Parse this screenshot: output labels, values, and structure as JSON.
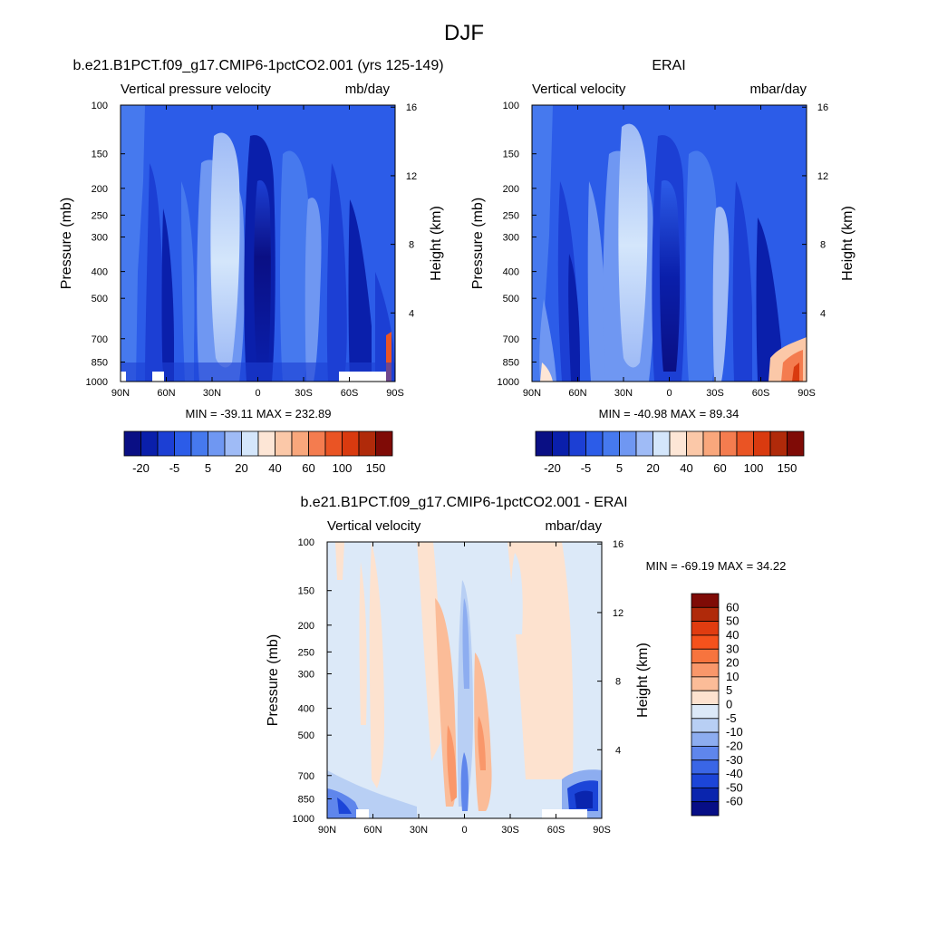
{
  "figure": {
    "title": "DJF",
    "background": "#ffffff"
  },
  "chart_data": [
    {
      "id": "model",
      "type": "heatmap",
      "title": "b.e21.B1PCT.f09_g17.CMIP6-1pctCO2.001 (yrs 125-149)",
      "left_string": "Vertical pressure velocity",
      "right_string": "mb/day",
      "xlabel": "",
      "ylabel": "Pressure (mb)",
      "y2label": "Height (km)",
      "x_ticks": [
        "90N",
        "60N",
        "30N",
        "0",
        "30S",
        "60S",
        "90S"
      ],
      "x_range": [
        90,
        -90
      ],
      "y_ticks": [
        "100",
        "150",
        "200",
        "250",
        "300",
        "400",
        "500",
        "700",
        "850",
        "1000"
      ],
      "y_tick_values": [
        100,
        150,
        200,
        250,
        300,
        400,
        500,
        700,
        850,
        1000
      ],
      "y_range": [
        100,
        1000
      ],
      "y2_ticks": [
        "16",
        "12",
        "8",
        "4"
      ],
      "y2_tick_values": [
        16,
        12,
        8,
        4
      ],
      "stats": "MIN = -39.11  MAX = 232.89",
      "colorbar": {
        "orientation": "horizontal",
        "labels": [
          "-20",
          "-5",
          "5",
          "20",
          "40",
          "60",
          "100",
          "150"
        ],
        "colors": [
          "#0a0f84",
          "#0a1fab",
          "#1c3fd4",
          "#2c5ce8",
          "#4679ee",
          "#6f97f2",
          "#9fbbf6",
          "#d4e6fb",
          "#fde6d6",
          "#fbc8a8",
          "#f9a77c",
          "#f47c4f",
          "#ea5424",
          "#d93a0f",
          "#b02a0a",
          "#7f0b06"
        ]
      }
    },
    {
      "id": "obs",
      "type": "heatmap",
      "title": "ERAI",
      "left_string": "Vertical velocity",
      "right_string": "mbar/day",
      "xlabel": "",
      "ylabel": "Pressure (mb)",
      "y2label": "Height (km)",
      "x_ticks": [
        "90N",
        "60N",
        "30N",
        "0",
        "30S",
        "60S",
        "90S"
      ],
      "x_range": [
        90,
        -90
      ],
      "y_ticks": [
        "100",
        "150",
        "200",
        "250",
        "300",
        "400",
        "500",
        "700",
        "850",
        "1000"
      ],
      "y_tick_values": [
        100,
        150,
        200,
        250,
        300,
        400,
        500,
        700,
        850,
        1000
      ],
      "y_range": [
        100,
        1000
      ],
      "y2_ticks": [
        "16",
        "12",
        "8",
        "4"
      ],
      "y2_tick_values": [
        16,
        12,
        8,
        4
      ],
      "stats": "MIN = -40.98  MAX =  89.34",
      "colorbar": {
        "orientation": "horizontal",
        "labels": [
          "-20",
          "-5",
          "5",
          "20",
          "40",
          "60",
          "100",
          "150"
        ],
        "colors": [
          "#0a0f84",
          "#0a1fab",
          "#1c3fd4",
          "#2c5ce8",
          "#4679ee",
          "#6f97f2",
          "#9fbbf6",
          "#d4e6fb",
          "#fde6d6",
          "#fbc8a8",
          "#f9a77c",
          "#f47c4f",
          "#ea5424",
          "#d93a0f",
          "#b02a0a",
          "#7f0b06"
        ]
      }
    },
    {
      "id": "diff",
      "type": "heatmap",
      "title": "b.e21.B1PCT.f09_g17.CMIP6-1pctCO2.001 - ERAI",
      "left_string": "Vertical velocity",
      "right_string": "mbar/day",
      "xlabel": "",
      "ylabel": "Pressure (mb)",
      "y2label": "Height (km)",
      "x_ticks": [
        "90N",
        "60N",
        "30N",
        "0",
        "30S",
        "60S",
        "90S"
      ],
      "x_range": [
        90,
        -90
      ],
      "y_ticks": [
        "100",
        "150",
        "200",
        "250",
        "300",
        "400",
        "500",
        "700",
        "850",
        "1000"
      ],
      "y_tick_values": [
        100,
        150,
        200,
        250,
        300,
        400,
        500,
        700,
        850,
        1000
      ],
      "y_range": [
        100,
        1000
      ],
      "y2_ticks": [
        "16",
        "12",
        "8",
        "4"
      ],
      "y2_tick_values": [
        16,
        12,
        8,
        4
      ],
      "stats": "MIN = -69.19  MAX =  34.22",
      "colorbar": {
        "orientation": "vertical",
        "labels": [
          "60",
          "50",
          "40",
          "30",
          "20",
          "10",
          "5",
          "0",
          "-5",
          "-10",
          "-20",
          "-30",
          "-40",
          "-50",
          "-60"
        ],
        "colors": [
          "#7f0b06",
          "#b02a0a",
          "#e03c10",
          "#f5521c",
          "#f7743e",
          "#f9976a",
          "#fbbc98",
          "#fde2cf",
          "#dce9f8",
          "#b8cff4",
          "#8dadf0",
          "#5f86ec",
          "#3a66e6",
          "#1c45d8",
          "#0a25ae",
          "#070e86"
        ]
      }
    }
  ]
}
